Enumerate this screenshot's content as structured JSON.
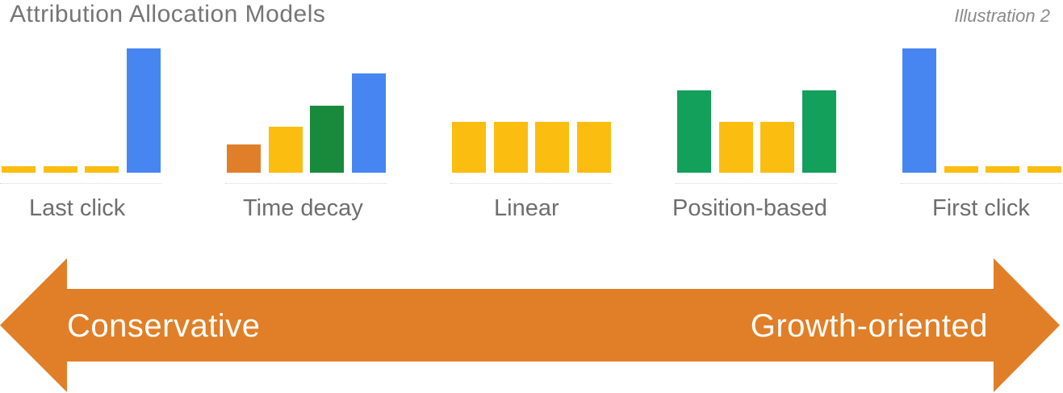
{
  "header": {
    "title": "Attribution Allocation Models",
    "illustration": "Illustration 2"
  },
  "colors": {
    "blue": "#4786f0",
    "yellow": "#fbbd10",
    "orange": "#e07f2a",
    "dark_green": "#198a3c",
    "green": "#12a05a",
    "arrow": "#e07f27"
  },
  "models": [
    {
      "label": "Last click",
      "bars": [
        {
          "value": 0.05,
          "color": "yellow"
        },
        {
          "value": 0.05,
          "color": "yellow"
        },
        {
          "value": 0.05,
          "color": "yellow"
        },
        {
          "value": 1.0,
          "color": "blue"
        }
      ]
    },
    {
      "label": "Time decay",
      "bars": [
        {
          "value": 0.23,
          "color": "orange"
        },
        {
          "value": 0.37,
          "color": "yellow"
        },
        {
          "value": 0.54,
          "color": "dark_green"
        },
        {
          "value": 0.8,
          "color": "blue"
        }
      ]
    },
    {
      "label": "Linear",
      "bars": [
        {
          "value": 0.41,
          "color": "yellow"
        },
        {
          "value": 0.41,
          "color": "yellow"
        },
        {
          "value": 0.41,
          "color": "yellow"
        },
        {
          "value": 0.41,
          "color": "yellow"
        }
      ]
    },
    {
      "label": "Position-based",
      "bars": [
        {
          "value": 0.66,
          "color": "green"
        },
        {
          "value": 0.41,
          "color": "yellow"
        },
        {
          "value": 0.41,
          "color": "yellow"
        },
        {
          "value": 0.66,
          "color": "green"
        }
      ]
    },
    {
      "label": "First click",
      "bars": [
        {
          "value": 1.0,
          "color": "blue"
        },
        {
          "value": 0.05,
          "color": "yellow"
        },
        {
          "value": 0.05,
          "color": "yellow"
        },
        {
          "value": 0.05,
          "color": "yellow"
        }
      ]
    }
  ],
  "arrow": {
    "left_label": "Conservative",
    "right_label": "Growth-oriented"
  }
}
